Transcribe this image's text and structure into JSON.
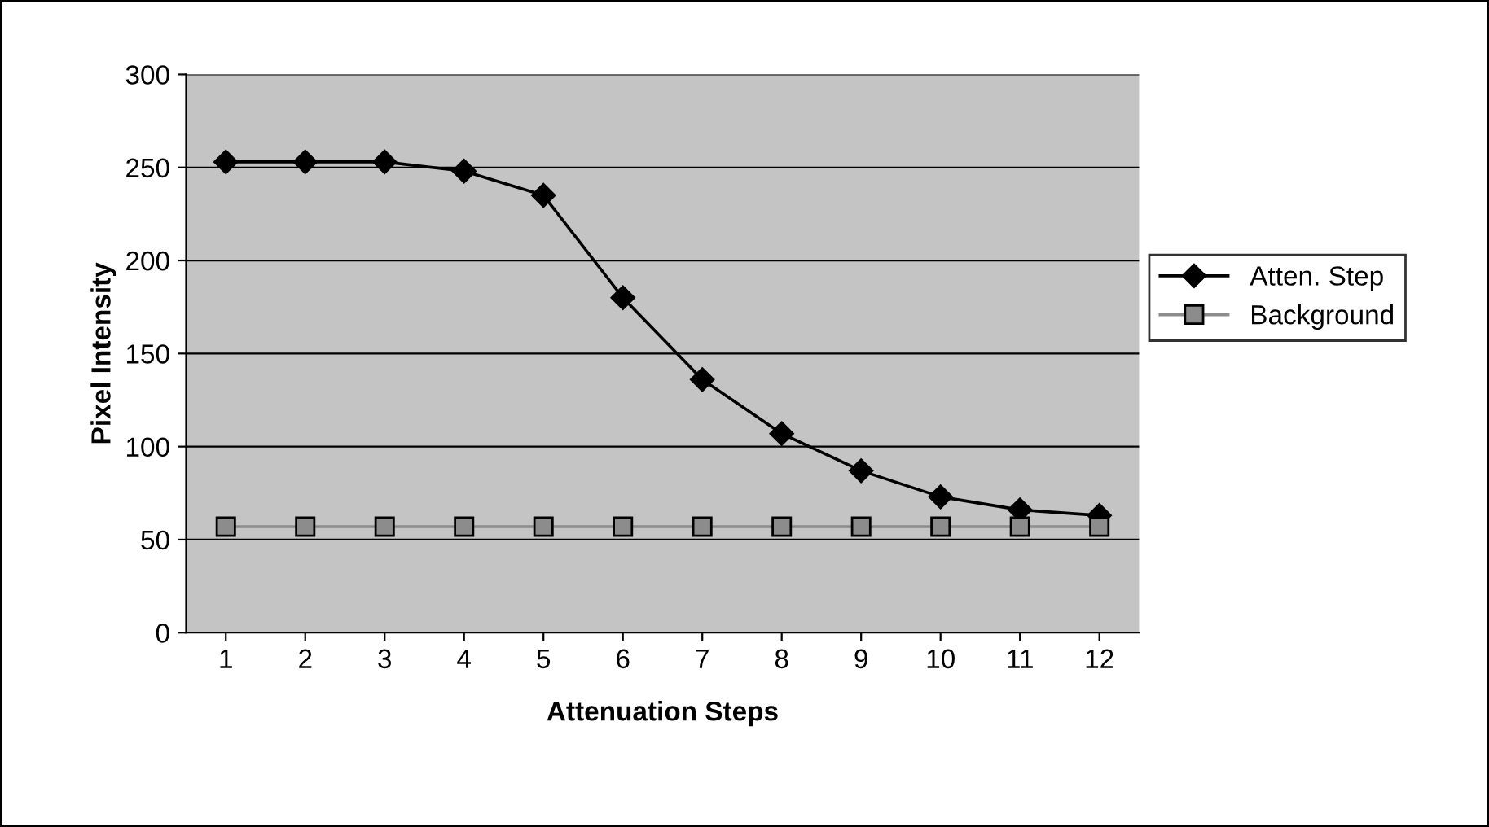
{
  "chart_data": {
    "type": "line",
    "xlabel": "Attenuation Steps",
    "ylabel": "Pixel Intensity",
    "categories": [
      "1",
      "2",
      "3",
      "4",
      "5",
      "6",
      "7",
      "8",
      "9",
      "10",
      "11",
      "12"
    ],
    "series": [
      {
        "name": "Atten. Step",
        "color": "#000000",
        "marker": "diamond",
        "values": [
          253,
          253,
          253,
          248,
          235,
          180,
          136,
          107,
          87,
          73,
          66,
          63
        ]
      },
      {
        "name": "Background",
        "color": "#8c8c8c",
        "marker": "square",
        "values": [
          57,
          57,
          57,
          57,
          57,
          57,
          57,
          57,
          57,
          57,
          57,
          57
        ]
      }
    ],
    "ylim": [
      0,
      300
    ],
    "yticks": [
      0,
      50,
      100,
      150,
      200,
      250,
      300
    ],
    "grid": "y",
    "legend": "right"
  }
}
